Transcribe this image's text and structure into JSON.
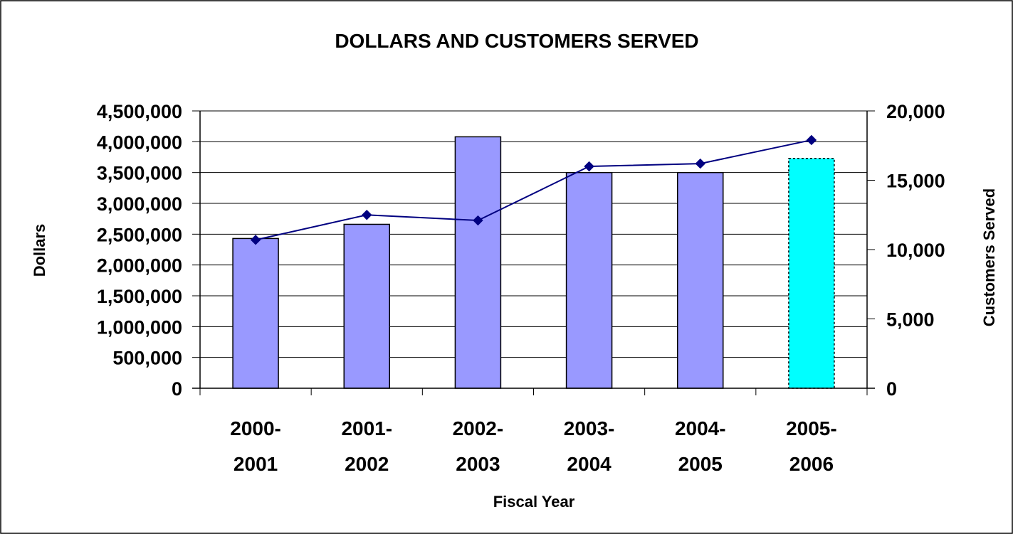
{
  "chart_data": {
    "type": "bar",
    "title": "DOLLARS AND CUSTOMERS SERVED",
    "xlabel": "Fiscal Year",
    "ylabel": "Dollars",
    "y2label": "Customers Served",
    "categories": [
      [
        "2000-",
        "2001"
      ],
      [
        "2001-",
        "2002"
      ],
      [
        "2002-",
        "2003"
      ],
      [
        "2003-",
        "2004"
      ],
      [
        "2004-",
        "2005"
      ],
      [
        "2005-",
        "2006"
      ]
    ],
    "ylim": [
      0,
      4500000
    ],
    "y2lim": [
      0,
      20000
    ],
    "y_ticks": [
      "0",
      "500,000",
      "1,000,000",
      "1,500,000",
      "2,000,000",
      "2,500,000",
      "3,000,000",
      "3,500,000",
      "4,000,000",
      "4,500,000"
    ],
    "y2_ticks": [
      "0",
      "5,000",
      "10,000",
      "15,000",
      "20,000"
    ],
    "grid": true,
    "series": [
      {
        "kind": "bar",
        "axis": "left",
        "values": [
          2430000,
          2660000,
          4080000,
          3500000,
          3500000,
          3730000
        ],
        "colors": [
          "#9999ff",
          "#9999ff",
          "#9999ff",
          "#9999ff",
          "#9999ff",
          "#00ffff"
        ],
        "dashed_border_last": true
      },
      {
        "kind": "line",
        "axis": "right",
        "values": [
          10700,
          12500,
          12100,
          16000,
          16200,
          17900
        ],
        "color": "#000080",
        "marker": "diamond"
      }
    ]
  }
}
